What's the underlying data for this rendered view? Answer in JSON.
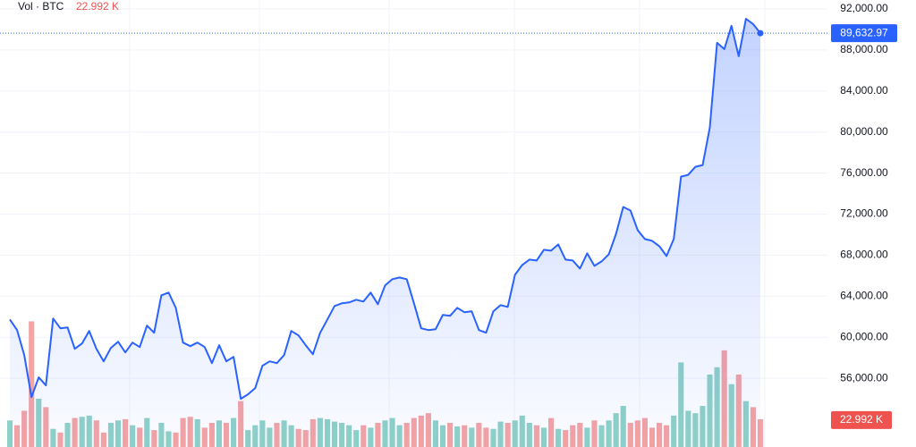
{
  "chart_data": {
    "type": "line",
    "legend": {
      "label": "Vol · BTC",
      "value": "22.992 K"
    },
    "series": [
      {
        "name": "BTC",
        "color": "#2962ff",
        "values": [
          61739,
          60696,
          58261,
          54174,
          56087,
          55304,
          61826,
          60870,
          60957,
          58870,
          59391,
          60609,
          58870,
          57652,
          58957,
          59565,
          58522,
          59478,
          59043,
          61130,
          60435,
          64087,
          64348,
          62870,
          59478,
          59130,
          59478,
          59043,
          57478,
          59217,
          57652,
          58087,
          54000,
          54435,
          55043,
          57217,
          57652,
          57478,
          58261,
          60609,
          60174,
          59217,
          58348,
          60435,
          61739,
          63043,
          63304,
          63391,
          63652,
          63478,
          64348,
          63217,
          65043,
          65652,
          65826,
          65652,
          63304,
          60870,
          60696,
          60783,
          62174,
          62087,
          62870,
          62435,
          62522,
          60696,
          60435,
          62522,
          63130,
          62957,
          66087,
          67043,
          67565,
          67478,
          68522,
          68435,
          69043,
          67565,
          67478,
          66696,
          68174,
          66957,
          67391,
          68087,
          70087,
          72696,
          72348,
          70435,
          69565,
          69391,
          68870,
          67913,
          69565,
          75652,
          75826,
          76609,
          76783,
          80435,
          88696,
          88087,
          90348,
          87391,
          91043,
          90522,
          89632.97
        ]
      }
    ],
    "last_price_label": "89,632.97",
    "volume": {
      "up_color": "#8fd1c7",
      "down_color": "#f5a3a3",
      "ylim": [
        0,
        370
      ],
      "values": [
        22,
        18,
        30,
        104,
        40,
        33,
        15,
        12,
        20,
        24,
        25,
        26,
        22,
        12,
        20,
        22,
        23,
        18,
        16,
        24,
        14,
        20,
        13,
        12,
        24,
        25,
        23,
        16,
        20,
        22,
        20,
        24,
        38,
        14,
        18,
        22,
        16,
        20,
        22,
        18,
        15,
        14,
        23,
        24,
        23,
        21,
        20,
        18,
        14,
        18,
        16,
        20,
        22,
        24,
        18,
        20,
        24,
        26,
        28,
        22,
        18,
        20,
        17,
        18,
        16,
        20,
        16,
        15,
        21,
        20,
        22,
        26,
        20,
        18,
        16,
        24,
        15,
        14,
        18,
        20,
        16,
        22,
        18,
        22,
        28,
        34,
        20,
        22,
        24,
        16,
        20,
        18,
        26,
        70,
        30,
        28,
        34,
        60,
        66,
        80,
        52,
        60,
        38,
        33,
        22.992
      ]
    },
    "ylim": [
      49300,
      92870
    ],
    "yticks": [
      {
        "value": 56000,
        "label": "56,000.00"
      },
      {
        "value": 60000,
        "label": "60,000.00"
      },
      {
        "value": 64000,
        "label": "64,000.00"
      },
      {
        "value": 68000,
        "label": "68,000.00"
      },
      {
        "value": 72000,
        "label": "72,000.00"
      },
      {
        "value": 76000,
        "label": "76,000.00"
      },
      {
        "value": 80000,
        "label": "80,000.00"
      },
      {
        "value": 84000,
        "label": "84,000.00"
      },
      {
        "value": 88000,
        "label": "88,000.00"
      },
      {
        "value": 92000,
        "label": "92,000.00"
      }
    ],
    "grid": true
  }
}
